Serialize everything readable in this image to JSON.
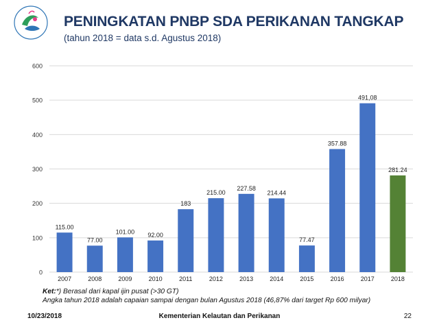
{
  "header": {
    "title": "PENINGKATAN PNBP SDA PERIKANAN TANGKAP",
    "subtitle": "(tahun 2018 = data s.d. Agustus 2018)"
  },
  "notes": {
    "line1_prefix": "Ket:",
    "line1_text": "*) Berasal dari kapal ijin pusat (>30 GT)",
    "line2": "Angka tahun 2018 adalah capaian sampai dengan bulan Agustus 2018 (46,87% dari target Rp 600 milyar)"
  },
  "footer": {
    "date": "10/23/2018",
    "org": "Kementerian Kelautan dan Perikanan",
    "page": "22"
  },
  "colors": {
    "bar_primary": "#4472c4",
    "bar_highlight": "#548235",
    "title": "#1f3864"
  },
  "chart_data": {
    "type": "bar",
    "title": "",
    "xlabel": "",
    "ylabel": "",
    "ylim": [
      0,
      600
    ],
    "yticks": [
      "0",
      "100",
      "200",
      "300",
      "400",
      "500",
      "600"
    ],
    "grid": true,
    "categories": [
      "2007",
      "2008",
      "2009",
      "2010",
      "2011",
      "2012",
      "2013",
      "2014",
      "2015",
      "2016",
      "2017",
      "2018"
    ],
    "values": [
      115.0,
      77.0,
      101.0,
      92.0,
      183,
      215.0,
      227.58,
      214.44,
      77.47,
      357.88,
      491.08,
      281.24
    ],
    "data_labels": [
      "115.00",
      "77.00",
      "101.00",
      "92.00",
      "183",
      "215.00",
      "227.58",
      "214.44",
      "77.47",
      "357.88",
      "491,08",
      "281.24"
    ],
    "highlight_index": 11
  }
}
